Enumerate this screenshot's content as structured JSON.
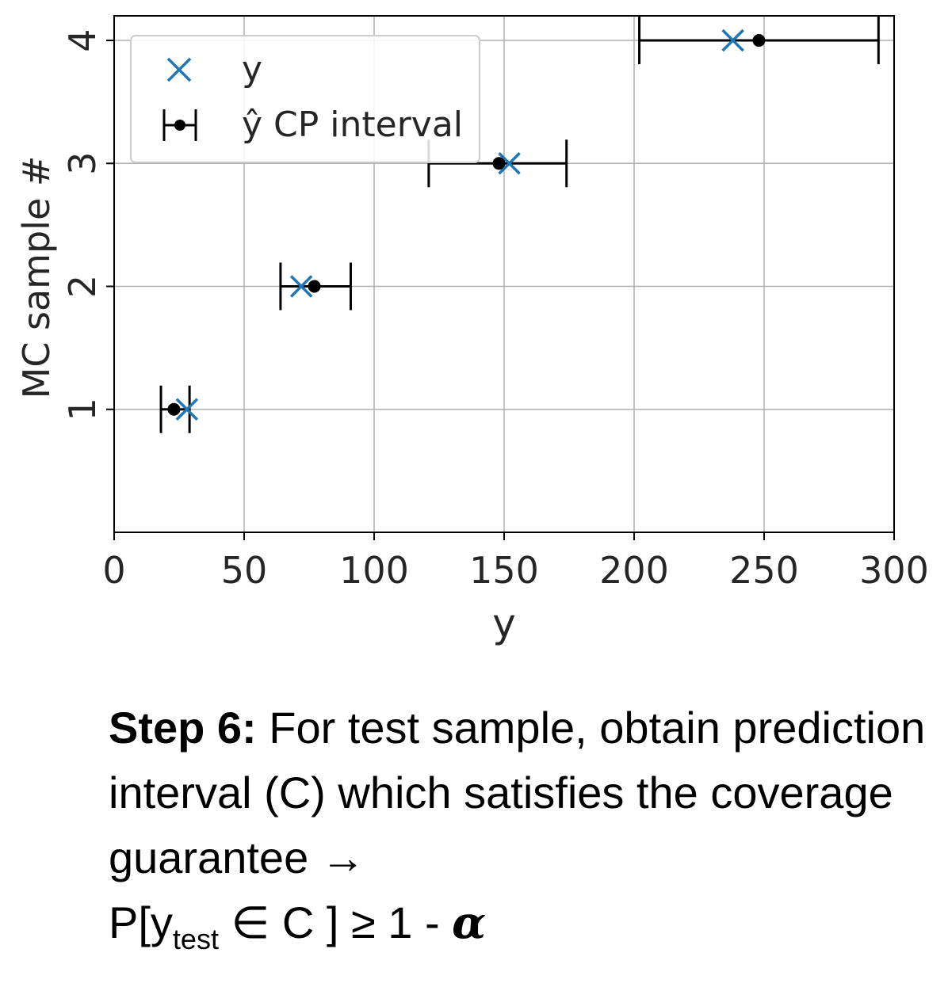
{
  "chart_data": {
    "type": "scatter",
    "xlabel": "y",
    "ylabel": "MC sample #",
    "xlim": [
      0,
      300
    ],
    "ylim": [
      0,
      4.2
    ],
    "xticks": [
      "0",
      "50",
      "100",
      "150",
      "200",
      "250",
      "300"
    ],
    "xtick_values": [
      0,
      50,
      100,
      150,
      200,
      250,
      300
    ],
    "yticks": [
      "1",
      "2",
      "3",
      "4"
    ],
    "ytick_values": [
      1,
      2,
      3,
      4
    ],
    "grid": true,
    "legend_position": "top-left",
    "legend": [
      "y",
      "ŷ CP interval"
    ],
    "series": [
      {
        "name": "y",
        "marker": "x",
        "color": "#1f77b4",
        "points": [
          {
            "x": 28,
            "y": 1
          },
          {
            "x": 72,
            "y": 2
          },
          {
            "x": 152,
            "y": 3
          },
          {
            "x": 238,
            "y": 4
          }
        ]
      },
      {
        "name": "ŷ CP interval",
        "marker": "dot",
        "color": "#000000",
        "points": [
          {
            "x": 23,
            "y": 1,
            "lo": 18,
            "hi": 29
          },
          {
            "x": 77,
            "y": 2,
            "lo": 64,
            "hi": 91
          },
          {
            "x": 148,
            "y": 3,
            "lo": 121,
            "hi": 174
          },
          {
            "x": 248,
            "y": 4,
            "lo": 202,
            "hi": 294
          }
        ]
      }
    ]
  },
  "caption": {
    "step_label": "Step 6:",
    "text_1": " For test sample, obtain prediction interval (C) which satisfies the coverage guarantee ",
    "arrow": "→",
    "formula_p": "P[y",
    "formula_sub": "test",
    "formula_rest": " ∈ C ] ≥ 1 - ",
    "formula_alpha": "α"
  }
}
